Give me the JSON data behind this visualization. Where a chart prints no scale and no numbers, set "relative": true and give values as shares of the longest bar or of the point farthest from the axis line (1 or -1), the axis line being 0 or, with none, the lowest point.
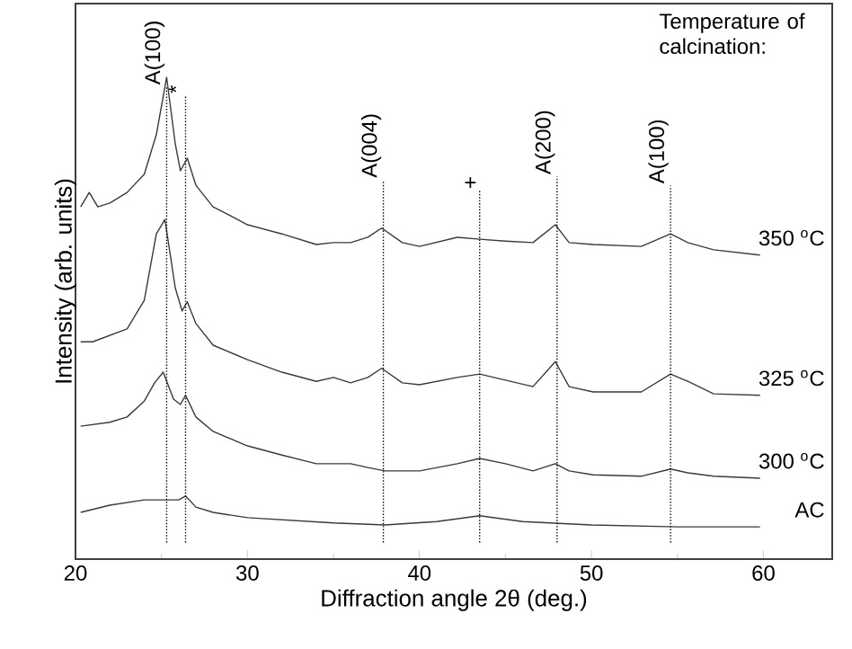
{
  "chart_data": {
    "type": "line",
    "relative": true,
    "xlabel": "Diffraction angle 2θ (deg.)",
    "ylabel": "Intensity (arb. units)",
    "legend_title": "Temperature of calcination:",
    "legend": false,
    "grid": false,
    "marker": "none",
    "line_style": "solid",
    "xlim": [
      20,
      64
    ],
    "xticks": [
      20,
      {
        "value": 25,
        "label": null
      },
      30,
      {
        "value": 35,
        "label": null
      },
      40,
      {
        "value": 45,
        "label": null
      },
      50,
      {
        "value": 55,
        "label": null
      },
      60
    ],
    "series": [
      {
        "name": "350 $^{o}$C",
        "color": "#3a3a3a",
        "x": [
          20.3,
          20.8,
          21.3,
          22,
          23,
          24,
          24.7,
          25.3,
          25.8,
          26.1,
          26.5,
          27,
          28,
          29,
          30,
          32,
          34,
          35,
          36,
          37,
          37.8,
          39,
          40,
          42.2,
          43.5,
          45,
          46.6,
          47.9,
          48.7,
          50.1,
          52.9,
          54.6,
          55.6,
          57.1,
          59.8
        ],
        "values": [
          0.731,
          0.761,
          0.731,
          0.739,
          0.761,
          0.799,
          0.881,
          1.0,
          0.862,
          0.806,
          0.832,
          0.776,
          0.731,
          0.713,
          0.694,
          0.675,
          0.653,
          0.657,
          0.657,
          0.668,
          0.687,
          0.657,
          0.649,
          0.668,
          0.664,
          0.66,
          0.657,
          0.694,
          0.657,
          0.653,
          0.649,
          0.675,
          0.657,
          0.642,
          0.631
        ]
      },
      {
        "name": "325 $^{o}$C",
        "color": "#3a3a3a",
        "x": [
          20.3,
          21,
          23,
          24,
          24.7,
          25.2,
          25.8,
          26.2,
          26.5,
          27,
          28,
          30,
          32,
          34,
          35,
          36,
          37,
          37.8,
          39,
          40,
          42.2,
          43.5,
          46.6,
          47.9,
          48.7,
          50.1,
          52.9,
          54.6,
          55.6,
          57.1,
          59.8
        ],
        "values": [
          0.451,
          0.451,
          0.478,
          0.537,
          0.675,
          0.705,
          0.563,
          0.515,
          0.534,
          0.489,
          0.444,
          0.414,
          0.388,
          0.369,
          0.377,
          0.366,
          0.377,
          0.396,
          0.366,
          0.362,
          0.377,
          0.384,
          0.358,
          0.41,
          0.358,
          0.347,
          0.347,
          0.384,
          0.369,
          0.343,
          0.34
        ]
      },
      {
        "name": "300 $^{o}$C",
        "color": "#3a3a3a",
        "x": [
          20.3,
          22,
          23,
          24,
          24.6,
          25.1,
          25.7,
          26.1,
          26.4,
          27,
          28,
          30,
          32,
          34,
          36,
          37,
          38,
          40,
          42.2,
          43.5,
          45,
          46.6,
          47.9,
          48.7,
          50.1,
          52.9,
          54.6,
          55.6,
          57.1,
          59.8
        ],
        "values": [
          0.276,
          0.284,
          0.295,
          0.328,
          0.366,
          0.388,
          0.332,
          0.321,
          0.34,
          0.295,
          0.265,
          0.235,
          0.216,
          0.198,
          0.198,
          0.19,
          0.183,
          0.183,
          0.198,
          0.209,
          0.198,
          0.183,
          0.198,
          0.183,
          0.175,
          0.172,
          0.187,
          0.179,
          0.172,
          0.168
        ]
      },
      {
        "name": "AC",
        "color": "#3a3a3a",
        "x": [
          20.3,
          22,
          24,
          26,
          26.4,
          27,
          28,
          30,
          35,
          38,
          41,
          43.5,
          46,
          50,
          55,
          59.8
        ],
        "values": [
          0.097,
          0.112,
          0.123,
          0.123,
          0.131,
          0.108,
          0.097,
          0.086,
          0.075,
          0.071,
          0.078,
          0.09,
          0.078,
          0.071,
          0.067,
          0.067
        ]
      }
    ],
    "ref_lines": [
      {
        "axis": "x",
        "value": 25.3,
        "label": "A(100)",
        "line_style": "dotted",
        "color": "#000000"
      },
      {
        "axis": "x",
        "value": 26.4,
        "label": "*",
        "line_style": "dotted",
        "color": "#000000"
      },
      {
        "axis": "x",
        "value": 37.9,
        "label": "A(004)",
        "line_style": "dotted",
        "color": "#000000"
      },
      {
        "axis": "x",
        "value": 43.5,
        "label": "+",
        "line_style": "dotted",
        "color": "#000000"
      },
      {
        "axis": "x",
        "value": 48.0,
        "label": "A(200)",
        "line_style": "dotted",
        "color": "#000000"
      },
      {
        "axis": "x",
        "value": 54.6,
        "label": "A(100)",
        "line_style": "dotted",
        "color": "#000000"
      }
    ]
  }
}
